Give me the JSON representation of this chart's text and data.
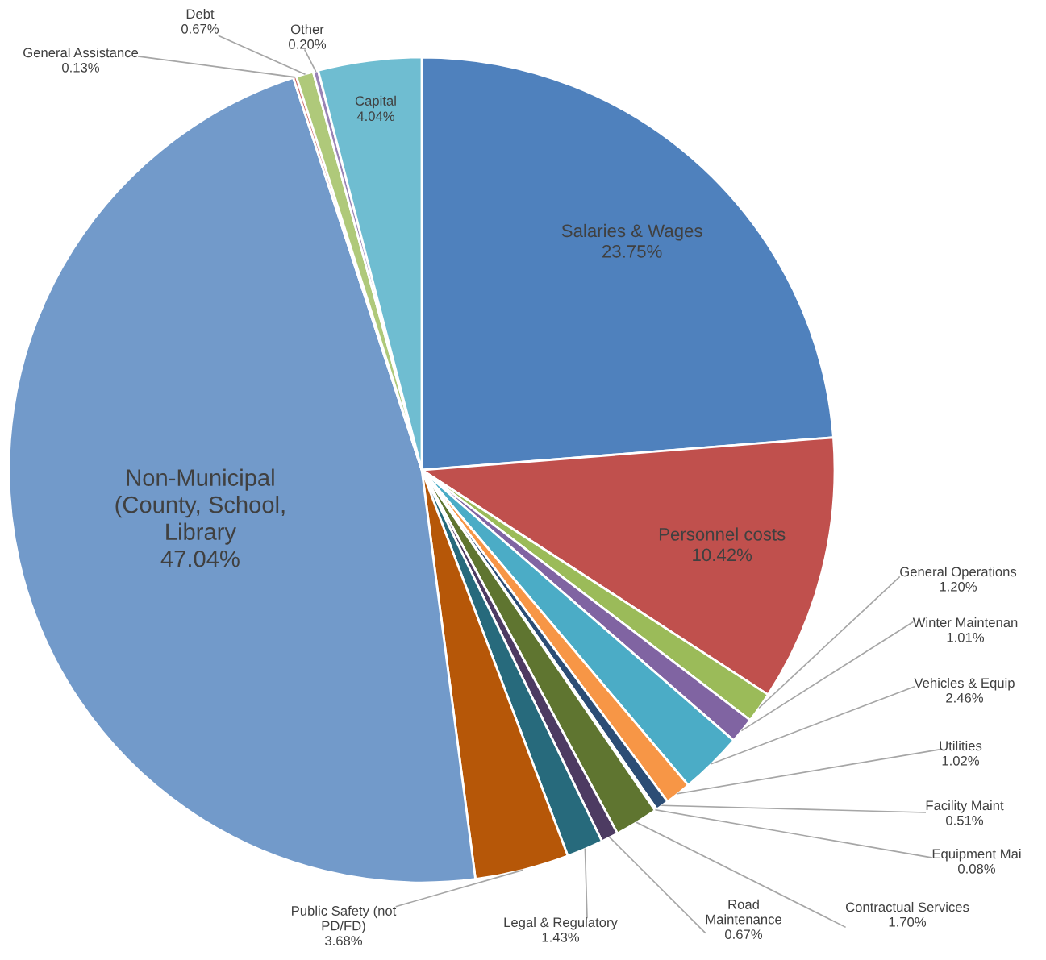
{
  "chart_data": {
    "type": "pie",
    "categories": [
      "Salaries & Wages",
      "Personnel costs",
      "General Operations",
      "Winter Maintenan",
      "Vehicles & Equip",
      "Utilities",
      "Facility Maint",
      "Equipment Mai",
      "Contractual Services",
      "Road\nMaintenance",
      "Legal & Regulatory",
      "Public Safety (not\nPD/FD)",
      "Non-Municipal\n(County, School,\nLibrary",
      "General Assistance",
      "Debt",
      "Other",
      "Capital"
    ],
    "values": [
      23.75,
      10.42,
      1.2,
      1.01,
      2.46,
      1.02,
      0.51,
      0.08,
      1.7,
      0.67,
      1.43,
      3.68,
      47.04,
      0.13,
      0.67,
      0.2,
      4.04
    ],
    "value_labels": [
      "23.75%",
      "10.42%",
      "1.20%",
      "1.01%",
      "2.46%",
      "1.02%",
      "0.51%",
      "0.08%",
      "1.70%",
      "0.67%",
      "1.43%",
      "3.68%",
      "47.04%",
      "0.13%",
      "0.67%",
      "0.20%",
      "4.04%"
    ],
    "colors": [
      "#4f81bd",
      "#c0504d",
      "#9bbb59",
      "#8064a2",
      "#4bacc6",
      "#f79646",
      "#2c4d75",
      "#772c2a",
      "#5f7530",
      "#4d3b62",
      "#276a7c",
      "#b65708",
      "#729aca",
      "#cd7371",
      "#afc97a",
      "#9983b5",
      "#6fbdd1"
    ]
  }
}
